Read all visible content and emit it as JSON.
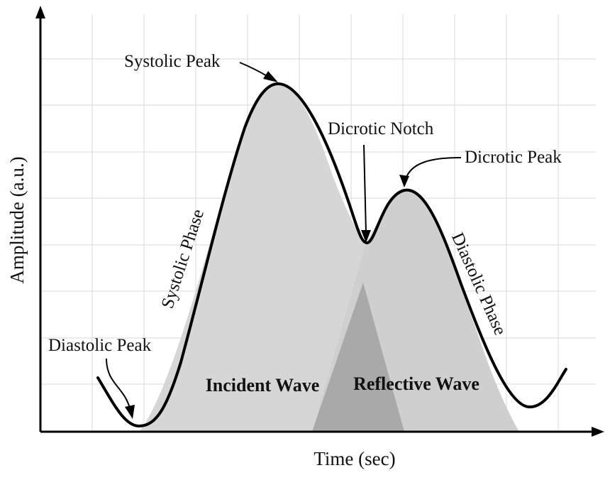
{
  "axes": {
    "x_label": "Time (sec)",
    "y_label": "Amplitude (a.u.)"
  },
  "annotations": {
    "systolic_peak": "Systolic Peak",
    "dicrotic_notch": "Dicrotic Notch",
    "dicrotic_peak": "Dicrotic Peak",
    "diastolic_peak": "Diastolic Peak",
    "systolic_phase": "Systolic Phase",
    "diastolic_phase": "Diastolic Phase",
    "incident_wave": "Incident Wave",
    "reflective_wave": "Reflective Wave"
  },
  "colors": {
    "curve": "#000000",
    "incident_fill": "#d6d6d6",
    "reflective_fill": "#cfcfcf",
    "overlap_fill": "#a9a9a9",
    "grid": "#d9d9d9"
  }
}
